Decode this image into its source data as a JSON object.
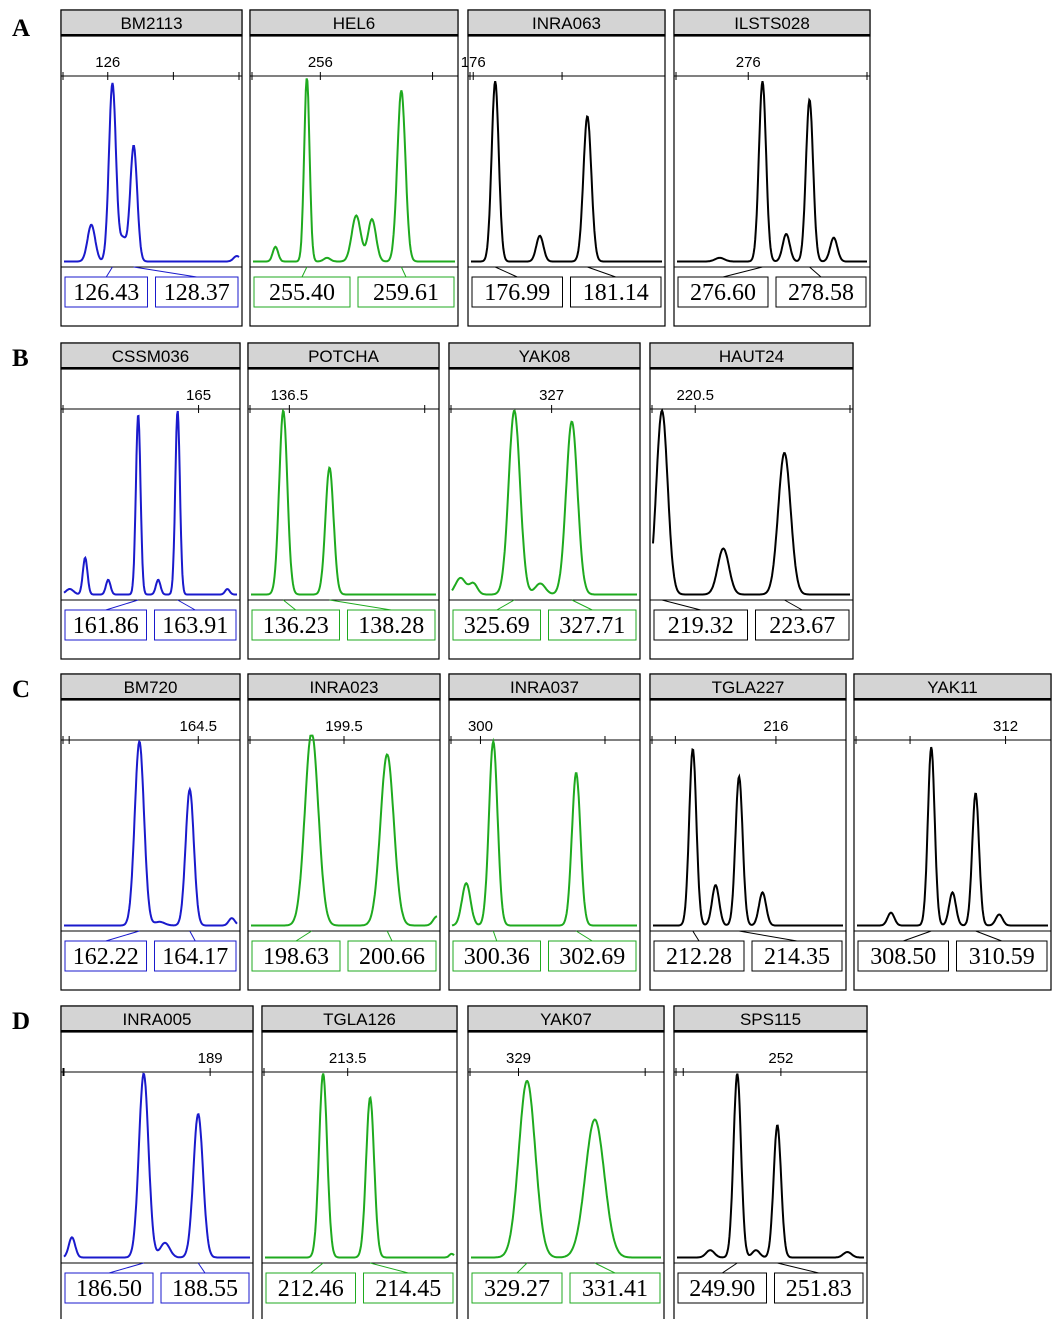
{
  "figure": {
    "rows": [
      {
        "label": "A",
        "panels": [
          {
            "marker": "BM2113",
            "color": "blue",
            "axis": {
              "range": [
                122,
                138
              ],
              "ticks": [
                126,
                132,
                138
              ],
              "tick_label": "126"
            },
            "peaks": [
              {
                "x": 124.5,
                "h": 0.2,
                "w": 0.35
              },
              {
                "x": 126.43,
                "h": 0.97,
                "w": 0.32
              },
              {
                "x": 127.4,
                "h": 0.12,
                "w": 0.3
              },
              {
                "x": 128.37,
                "h": 0.63,
                "w": 0.32
              },
              {
                "x": 137.8,
                "h": 0.03,
                "w": 0.3
              }
            ],
            "calls": [
              "126.43",
              "128.37"
            ]
          },
          {
            "marker": "HEL6",
            "color": "green",
            "axis": {
              "range": [
                253,
                262
              ],
              "ticks": [
                256,
                261
              ],
              "tick_label": "256"
            },
            "peaks": [
              {
                "x": 254.0,
                "h": 0.08,
                "w": 0.12
              },
              {
                "x": 255.4,
                "h": 1.0,
                "w": 0.12
              },
              {
                "x": 256.3,
                "h": 0.02,
                "w": 0.15
              },
              {
                "x": 257.6,
                "h": 0.25,
                "w": 0.2
              },
              {
                "x": 258.3,
                "h": 0.23,
                "w": 0.18
              },
              {
                "x": 259.61,
                "h": 0.93,
                "w": 0.18
              }
            ],
            "calls": [
              "255.40",
              "259.61"
            ]
          },
          {
            "marker": "INRA063",
            "color": "black",
            "axis": {
              "range": [
                175.9,
                184.5
              ],
              "ticks": [
                176,
                180
              ],
              "tick_label": "176"
            },
            "peaks": [
              {
                "x": 176.99,
                "h": 0.98,
                "w": 0.16
              },
              {
                "x": 179.0,
                "h": 0.14,
                "w": 0.16
              },
              {
                "x": 181.14,
                "h": 0.79,
                "w": 0.18
              }
            ],
            "calls": [
              "176.99",
              "181.14"
            ]
          },
          {
            "marker": "ILSTS028",
            "color": "black",
            "axis": {
              "range": [
                273,
                281
              ],
              "ticks": [
                276,
                281
              ],
              "tick_label": "276"
            },
            "peaks": [
              {
                "x": 274.8,
                "h": 0.02,
                "w": 0.2
              },
              {
                "x": 276.6,
                "h": 0.98,
                "w": 0.15
              },
              {
                "x": 277.6,
                "h": 0.15,
                "w": 0.15
              },
              {
                "x": 278.58,
                "h": 0.88,
                "w": 0.15
              },
              {
                "x": 279.6,
                "h": 0.13,
                "w": 0.15
              }
            ],
            "calls": [
              "276.60",
              "278.58"
            ]
          }
        ]
      },
      {
        "label": "B",
        "panels": [
          {
            "marker": "CSSM036",
            "color": "blue",
            "axis": {
              "range": [
                158,
                167
              ],
              "ticks": [
                165
              ],
              "tick_label": "165"
            },
            "peaks": [
              {
                "x": 158.3,
                "h": 0.03,
                "w": 0.2
              },
              {
                "x": 159.1,
                "h": 0.2,
                "w": 0.12
              },
              {
                "x": 160.3,
                "h": 0.08,
                "w": 0.12
              },
              {
                "x": 161.86,
                "h": 0.98,
                "w": 0.12
              },
              {
                "x": 162.9,
                "h": 0.08,
                "w": 0.12
              },
              {
                "x": 163.91,
                "h": 1.0,
                "w": 0.12
              },
              {
                "x": 166.5,
                "h": 0.03,
                "w": 0.12
              }
            ],
            "calls": [
              "161.86",
              "163.91"
            ]
          },
          {
            "marker": "POTCHA",
            "color": "green",
            "axis": {
              "range": [
                134.8,
                143
              ],
              "ticks": [
                136.5,
                142.5
              ],
              "tick_label": "136.5"
            },
            "peaks": [
              {
                "x": 136.23,
                "h": 1.0,
                "w": 0.18
              },
              {
                "x": 138.28,
                "h": 0.69,
                "w": 0.18
              }
            ],
            "calls": [
              "136.23",
              "138.28"
            ]
          },
          {
            "marker": "YAK08",
            "color": "green",
            "axis": {
              "range": [
                323.5,
                330
              ],
              "ticks": [
                327
              ],
              "tick_label": "327"
            },
            "peaks": [
              {
                "x": 323.8,
                "h": 0.09,
                "w": 0.18
              },
              {
                "x": 324.25,
                "h": 0.06,
                "w": 0.14
              },
              {
                "x": 325.69,
                "h": 1.0,
                "w": 0.2
              },
              {
                "x": 326.6,
                "h": 0.06,
                "w": 0.18
              },
              {
                "x": 327.71,
                "h": 0.94,
                "w": 0.2
              }
            ],
            "calls": [
              "325.69",
              "327.71"
            ]
          },
          {
            "marker": "HAUT24",
            "color": "black",
            "axis": {
              "range": [
                219,
                226
              ],
              "ticks": [
                220.5,
                226
              ],
              "tick_label": "220.5"
            },
            "peaks": [
              {
                "x": 219.32,
                "h": 1.0,
                "w": 0.2
              },
              {
                "x": 221.5,
                "h": 0.25,
                "w": 0.2
              },
              {
                "x": 223.67,
                "h": 0.77,
                "w": 0.22
              }
            ],
            "calls": [
              "219.32",
              "223.67"
            ]
          }
        ]
      },
      {
        "label": "C",
        "panels": [
          {
            "marker": "BM720",
            "color": "blue",
            "axis": {
              "range": [
                159.3,
                166
              ],
              "ticks": [
                159.5,
                164.5
              ],
              "tick_label": "164.5"
            },
            "peaks": [
              {
                "x": 162.22,
                "h": 1.0,
                "w": 0.18
              },
              {
                "x": 163.0,
                "h": 0.02,
                "w": 0.2
              },
              {
                "x": 164.17,
                "h": 0.74,
                "w": 0.16
              },
              {
                "x": 165.8,
                "h": 0.04,
                "w": 0.12
              }
            ],
            "calls": [
              "162.22",
              "164.17"
            ]
          },
          {
            "marker": "INRA023",
            "color": "green",
            "axis": {
              "range": [
                197,
                202
              ],
              "ticks": [
                199.5
              ],
              "tick_label": "199.5"
            },
            "peaks": [
              {
                "x": 198.63,
                "h": 1.05,
                "w": 0.18
              },
              {
                "x": 200.66,
                "h": 0.93,
                "w": 0.18
              },
              {
                "x": 202.0,
                "h": 0.05,
                "w": 0.1
              }
            ],
            "calls": [
              "198.63",
              "200.66"
            ]
          },
          {
            "marker": "INRA037",
            "color": "green",
            "axis": {
              "range": [
                299.2,
                304.4
              ],
              "ticks": [
                300,
                303.5
              ],
              "tick_label": "300"
            },
            "peaks": [
              {
                "x": 299.6,
                "h": 0.23,
                "w": 0.12
              },
              {
                "x": 300.36,
                "h": 1.0,
                "w": 0.12
              },
              {
                "x": 302.69,
                "h": 0.83,
                "w": 0.12
              }
            ],
            "calls": [
              "300.36",
              "302.69"
            ]
          },
          {
            "marker": "TGLA227",
            "color": "black",
            "axis": {
              "range": [
                210.5,
                219
              ],
              "ticks": [
                211.5,
                216
              ],
              "tick_label": "216"
            },
            "peaks": [
              {
                "x": 212.28,
                "h": 0.96,
                "w": 0.16
              },
              {
                "x": 213.3,
                "h": 0.22,
                "w": 0.16
              },
              {
                "x": 214.35,
                "h": 0.81,
                "w": 0.16
              },
              {
                "x": 215.4,
                "h": 0.18,
                "w": 0.16
              }
            ],
            "calls": [
              "212.28",
              "214.35"
            ]
          },
          {
            "marker": "YAK11",
            "color": "black",
            "axis": {
              "range": [
                305,
                314
              ],
              "ticks": [
                307.5,
                312
              ],
              "tick_label": "312"
            },
            "peaks": [
              {
                "x": 306.6,
                "h": 0.07,
                "w": 0.16
              },
              {
                "x": 308.5,
                "h": 0.97,
                "w": 0.16
              },
              {
                "x": 309.5,
                "h": 0.18,
                "w": 0.16
              },
              {
                "x": 310.59,
                "h": 0.72,
                "w": 0.16
              },
              {
                "x": 311.7,
                "h": 0.06,
                "w": 0.16
              }
            ],
            "calls": [
              "308.50",
              "310.59"
            ]
          }
        ]
      },
      {
        "label": "D",
        "panels": [
          {
            "marker": "INRA005",
            "color": "blue",
            "axis": {
              "range": [
                183.5,
                190.5
              ],
              "ticks": [
                183.5,
                189
              ],
              "tick_label": "189"
            },
            "peaks": [
              {
                "x": 183.8,
                "h": 0.11,
                "w": 0.12
              },
              {
                "x": 186.5,
                "h": 1.0,
                "w": 0.18
              },
              {
                "x": 187.3,
                "h": 0.08,
                "w": 0.18
              },
              {
                "x": 188.55,
                "h": 0.78,
                "w": 0.18
              }
            ],
            "calls": [
              "186.50",
              "188.55"
            ]
          },
          {
            "marker": "TGLA126",
            "color": "green",
            "axis": {
              "range": [
                210,
                218
              ],
              "ticks": [
                213.5
              ],
              "tick_label": "213.5"
            },
            "peaks": [
              {
                "x": 212.46,
                "h": 1.0,
                "w": 0.17
              },
              {
                "x": 214.45,
                "h": 0.87,
                "w": 0.17
              },
              {
                "x": 217.9,
                "h": 0.02,
                "w": 0.1
              }
            ],
            "calls": [
              "212.46",
              "214.45"
            ]
          },
          {
            "marker": "YAK07",
            "color": "green",
            "axis": {
              "range": [
                327.5,
                333.5
              ],
              "ticks": [
                329,
                333
              ],
              "tick_label": "329"
            },
            "peaks": [
              {
                "x": 329.27,
                "h": 0.96,
                "w": 0.26
              },
              {
                "x": 331.41,
                "h": 0.75,
                "w": 0.3
              }
            ],
            "calls": [
              "329.27",
              "331.41"
            ]
          },
          {
            "marker": "SPS115",
            "color": "black",
            "axis": {
              "range": [
                247,
                256
              ],
              "ticks": [
                247.3,
                252
              ],
              "tick_label": "252"
            },
            "peaks": [
              {
                "x": 248.6,
                "h": 0.04,
                "w": 0.2
              },
              {
                "x": 249.9,
                "h": 1.0,
                "w": 0.18
              },
              {
                "x": 250.8,
                "h": 0.04,
                "w": 0.18
              },
              {
                "x": 251.83,
                "h": 0.72,
                "w": 0.18
              },
              {
                "x": 255.2,
                "h": 0.03,
                "w": 0.2
              }
            ],
            "calls": [
              "249.90",
              "251.83"
            ]
          }
        ]
      }
    ]
  },
  "colors": {
    "blue": "#1a1acc",
    "green": "#1faa1f",
    "black": "#000000",
    "header_fill": "#d4d4d4"
  },
  "chart_data": {
    "type": "line",
    "panels": [
      {
        "marker": "BM2113",
        "allele_sizes": [
          126.43,
          128.37
        ],
        "axis_tick_label": 126
      },
      {
        "marker": "HEL6",
        "allele_sizes": [
          255.4,
          259.61
        ],
        "axis_tick_label": 256
      },
      {
        "marker": "INRA063",
        "allele_sizes": [
          176.99,
          181.14
        ],
        "axis_tick_label": 176
      },
      {
        "marker": "ILSTS028",
        "allele_sizes": [
          276.6,
          278.58
        ],
        "axis_tick_label": 276
      },
      {
        "marker": "CSSM036",
        "allele_sizes": [
          161.86,
          163.91
        ],
        "axis_tick_label": 165
      },
      {
        "marker": "POTCHA",
        "allele_sizes": [
          136.23,
          138.28
        ],
        "axis_tick_label": 136.5
      },
      {
        "marker": "YAK08",
        "allele_sizes": [
          325.69,
          327.71
        ],
        "axis_tick_label": 327
      },
      {
        "marker": "HAUT24",
        "allele_sizes": [
          219.32,
          223.67
        ],
        "axis_tick_label": 220.5
      },
      {
        "marker": "BM720",
        "allele_sizes": [
          162.22,
          164.17
        ],
        "axis_tick_label": 164.5
      },
      {
        "marker": "INRA023",
        "allele_sizes": [
          198.63,
          200.66
        ],
        "axis_tick_label": 199.5
      },
      {
        "marker": "INRA037",
        "allele_sizes": [
          300.36,
          302.69
        ],
        "axis_tick_label": 300
      },
      {
        "marker": "TGLA227",
        "allele_sizes": [
          212.28,
          214.35
        ],
        "axis_tick_label": 216
      },
      {
        "marker": "YAK11",
        "allele_sizes": [
          308.5,
          310.59
        ],
        "axis_tick_label": 312
      },
      {
        "marker": "INRA005",
        "allele_sizes": [
          186.5,
          188.55
        ],
        "axis_tick_label": 189
      },
      {
        "marker": "TGLA126",
        "allele_sizes": [
          212.46,
          214.45
        ],
        "axis_tick_label": 213.5
      },
      {
        "marker": "YAK07",
        "allele_sizes": [
          329.27,
          331.41
        ],
        "axis_tick_label": 329
      },
      {
        "marker": "SPS115",
        "allele_sizes": [
          249.9,
          251.83
        ],
        "axis_tick_label": 252
      }
    ]
  }
}
